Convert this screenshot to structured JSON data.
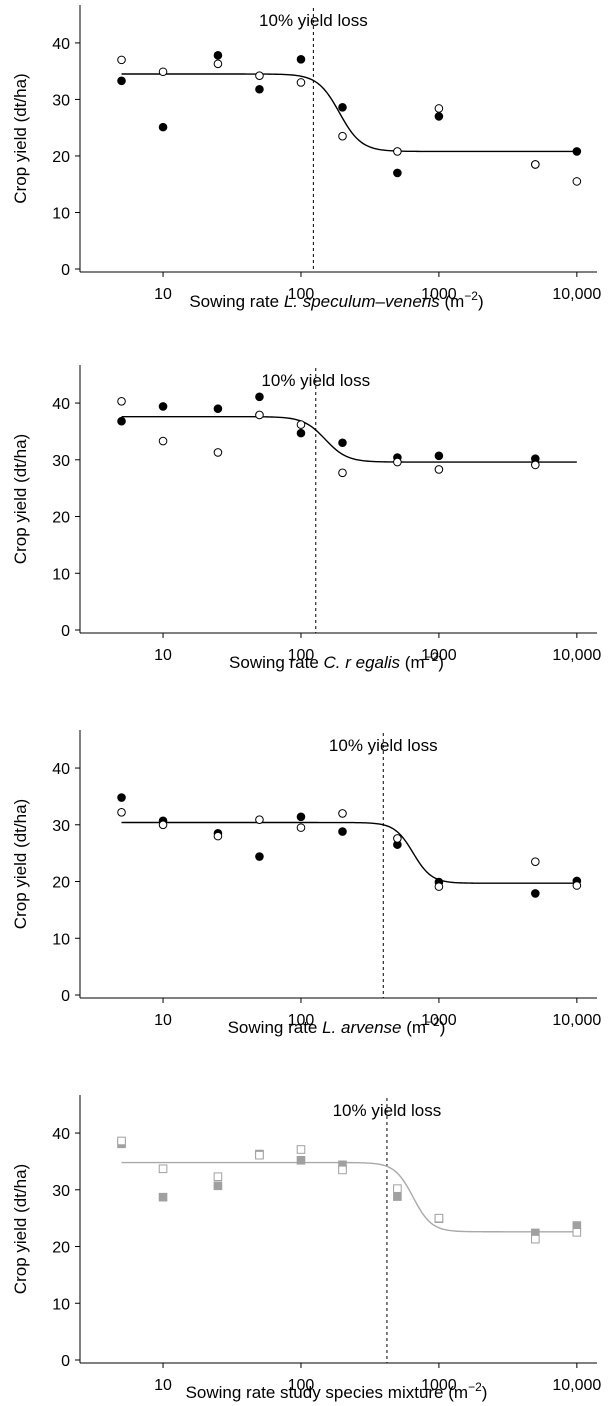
{
  "chart_data": [
    {
      "type": "scatter",
      "title": "",
      "xlabel": "Sowing rate",
      "xlabel_species": "L. speculum–veneris",
      "xlabel_unit": "(m−2)",
      "ylabel": "Crop yield (dt/ha)",
      "xscale": "log",
      "xlim": [
        2.5,
        14000
      ],
      "ylim": [
        0,
        46
      ],
      "x_ticks": [
        10,
        100,
        1000,
        10000
      ],
      "x_tick_labels": [
        "10",
        "100",
        "1000",
        "10,000"
      ],
      "y_ticks": [
        0,
        10,
        20,
        30,
        40
      ],
      "y_tick_labels": [
        "0",
        "10",
        "20",
        "30",
        "40"
      ],
      "annotation": {
        "text": "10% yield loss",
        "x": 123
      },
      "curve_color": "#000000",
      "fit": {
        "upper": 34.5,
        "lower": 20.8,
        "mid": 190,
        "slope": 5.5
      },
      "series": [
        {
          "marker": "filled-circle",
          "color": "#000000",
          "x": [
            5,
            10,
            25,
            50,
            100,
            200,
            500,
            1000,
            5000,
            10000
          ],
          "y": [
            33.3,
            25.1,
            37.8,
            31.8,
            37.1,
            28.6,
            17.0,
            27.0,
            18.5,
            20.8
          ]
        },
        {
          "marker": "open-circle",
          "color": "#000000",
          "x": [
            5,
            10,
            25,
            50,
            100,
            200,
            500,
            1000,
            5000,
            10000
          ],
          "y": [
            37.0,
            34.9,
            36.3,
            34.2,
            33.0,
            23.5,
            20.8,
            28.4,
            18.5,
            15.5
          ]
        }
      ]
    },
    {
      "type": "scatter",
      "title": "",
      "xlabel": "Sowing rate",
      "xlabel_species": "C. r egalis",
      "xlabel_unit": "(m−2)",
      "ylabel": "Crop yield (dt/ha)",
      "xscale": "log",
      "xlim": [
        2.5,
        14000
      ],
      "ylim": [
        0,
        46
      ],
      "x_ticks": [
        10,
        100,
        1000,
        10000
      ],
      "x_tick_labels": [
        "10",
        "100",
        "1000",
        "10,000"
      ],
      "y_ticks": [
        0,
        10,
        20,
        30,
        40
      ],
      "y_tick_labels": [
        "0",
        "10",
        "20",
        "30",
        "40"
      ],
      "annotation": {
        "text": "10% yield loss",
        "x": 128
      },
      "curve_color": "#000000",
      "fit": {
        "upper": 37.6,
        "lower": 29.6,
        "mid": 150,
        "slope": 5.5
      },
      "series": [
        {
          "marker": "filled-circle",
          "color": "#000000",
          "x": [
            5,
            10,
            25,
            50,
            100,
            200,
            500,
            1000,
            5000
          ],
          "y": [
            36.8,
            39.4,
            39.0,
            41.1,
            34.7,
            33.0,
            30.4,
            30.7,
            30.2
          ]
        },
        {
          "marker": "open-circle",
          "color": "#000000",
          "x": [
            5,
            10,
            25,
            50,
            100,
            200,
            500,
            1000,
            5000
          ],
          "y": [
            40.3,
            33.3,
            31.3,
            37.9,
            36.2,
            27.7,
            29.6,
            28.3,
            29.1
          ]
        }
      ]
    },
    {
      "type": "scatter",
      "title": "",
      "xlabel": "Sowing rate",
      "xlabel_species": "L. arvense",
      "xlabel_unit": "(m−2)",
      "ylabel": "Crop yield (dt/ha)",
      "xscale": "log",
      "xlim": [
        2.5,
        14000
      ],
      "ylim": [
        0,
        46
      ],
      "x_ticks": [
        10,
        100,
        1000,
        10000
      ],
      "x_tick_labels": [
        "10",
        "100",
        "1000",
        "10,000"
      ],
      "y_ticks": [
        0,
        10,
        20,
        30,
        40
      ],
      "y_tick_labels": [
        "0",
        "10",
        "20",
        "30",
        "40"
      ],
      "annotation": {
        "text": "10% yield loss",
        "x": 395
      },
      "curve_color": "#000000",
      "fit": {
        "upper": 30.4,
        "lower": 19.7,
        "mid": 650,
        "slope": 6.5
      },
      "series": [
        {
          "marker": "filled-circle",
          "color": "#000000",
          "x": [
            5,
            10,
            25,
            50,
            100,
            200,
            500,
            1000,
            5000,
            10000
          ],
          "y": [
            34.8,
            30.7,
            28.5,
            24.4,
            31.4,
            28.8,
            26.5,
            19.9,
            17.9,
            20.1
          ]
        },
        {
          "marker": "open-circle",
          "color": "#000000",
          "x": [
            5,
            10,
            25,
            50,
            100,
            200,
            500,
            1000,
            5000,
            10000
          ],
          "y": [
            32.2,
            30.0,
            28.0,
            30.9,
            29.5,
            32.0,
            27.6,
            19.1,
            23.5,
            19.3
          ]
        }
      ]
    },
    {
      "type": "scatter",
      "title": "",
      "xlabel": "Sowing rate study species mixture",
      "xlabel_species": "",
      "xlabel_unit": "(m−2)",
      "ylabel": "Crop yield (dt/ha)",
      "xscale": "log",
      "xlim": [
        2.5,
        14000
      ],
      "ylim": [
        0,
        46
      ],
      "x_ticks": [
        10,
        100,
        1000,
        10000
      ],
      "x_tick_labels": [
        "10",
        "100",
        "1000",
        "10,000"
      ],
      "y_ticks": [
        0,
        10,
        20,
        30,
        40
      ],
      "y_tick_labels": [
        "0",
        "10",
        "20",
        "30",
        "40"
      ],
      "annotation": {
        "text": "10% yield loss",
        "x": 420
      },
      "curve_color": "#a9a9a9",
      "fit": {
        "upper": 34.8,
        "lower": 22.6,
        "mid": 650,
        "slope": 6.5
      },
      "series": [
        {
          "marker": "filled-square",
          "color": "#a0a0a0",
          "x": [
            5,
            10,
            25,
            50,
            100,
            200,
            500,
            1000,
            5000,
            10000
          ],
          "y": [
            38.1,
            28.7,
            30.7,
            36.3,
            35.2,
            34.4,
            28.8,
            24.9,
            22.4,
            23.7
          ]
        },
        {
          "marker": "open-square",
          "color": "#a0a0a0",
          "x": [
            5,
            10,
            25,
            50,
            100,
            200,
            500,
            1000,
            5000,
            10000
          ],
          "y": [
            38.6,
            33.7,
            32.3,
            36.1,
            37.1,
            33.5,
            30.2,
            25.0,
            21.3,
            22.5
          ]
        }
      ]
    }
  ]
}
